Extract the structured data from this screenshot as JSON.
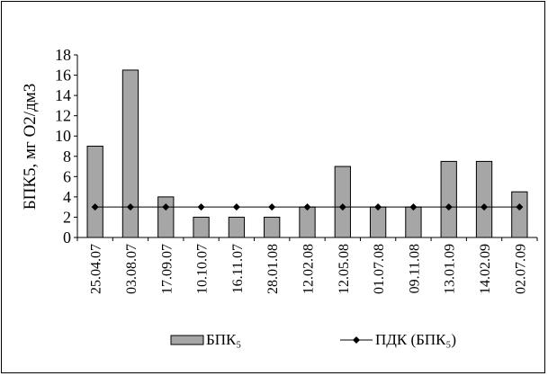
{
  "chart_data": {
    "type": "bar",
    "title": "",
    "ylabel": "БПК5, мг О2/дм3",
    "xlabel": "",
    "ylim": [
      0,
      18
    ],
    "yticks": [
      0,
      2,
      4,
      6,
      8,
      10,
      12,
      14,
      16,
      18
    ],
    "categories": [
      "25.04.07",
      "03.08.07",
      "17.09.07",
      "10.10.07",
      "16.11.07",
      "28.01.08",
      "12.02.08",
      "12.05.08",
      "01.07.08",
      "09.11.08",
      "13.01.09",
      "14.02.09",
      "02.07.09"
    ],
    "series": [
      {
        "name": "БПК₅",
        "kind": "bar",
        "color": "#a6a6a6",
        "values": [
          9,
          16.5,
          4,
          2,
          2,
          2,
          3,
          7,
          3,
          3,
          7.5,
          7.5,
          4.5
        ]
      },
      {
        "name": "ПДК (БПК₅)",
        "kind": "line",
        "color": "#000000",
        "values": [
          3,
          3,
          3,
          3,
          3,
          3,
          3,
          3,
          3,
          3,
          3,
          3,
          3
        ]
      }
    ],
    "legend": "bottom",
    "grid": false
  }
}
